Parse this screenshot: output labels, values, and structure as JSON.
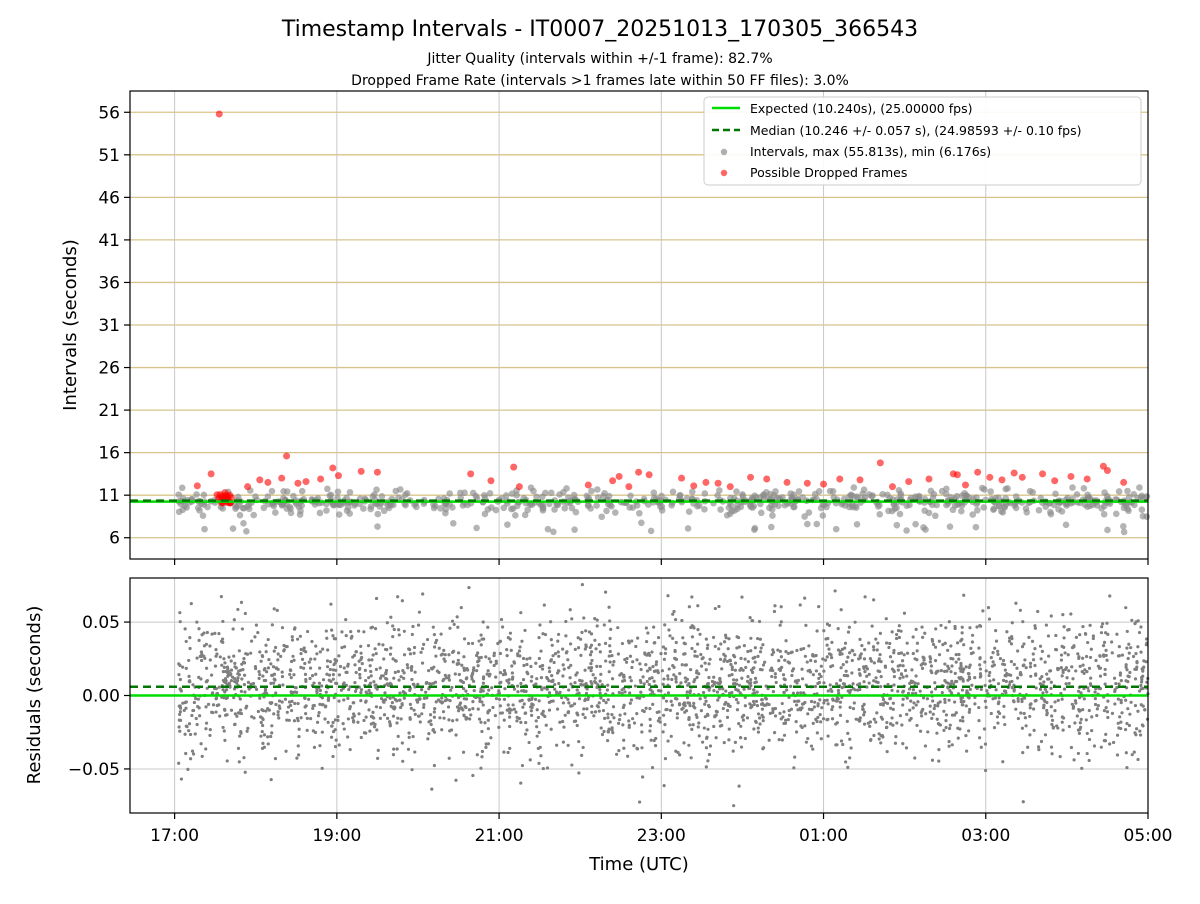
{
  "title": "Timestamp Intervals - IT0007_20251013_170305_366543",
  "subtitle_1": "Jitter Quality (intervals within +/-1 frame): 82.7%",
  "subtitle_2": "Dropped Frame Rate (intervals >1 frames late within 50 FF files): 3.0%",
  "colors": {
    "expected": "#00dd00",
    "median": "#007700",
    "interval": "#8c8c8c",
    "dropped": "#ff0000",
    "band": "#d8c48a",
    "grid": "#c8c8c8",
    "residual": "#7f7f7f"
  },
  "chart_data": [
    {
      "type": "scatter",
      "panel": "intervals",
      "xlabel": "",
      "ylabel": "Intervals (seconds)",
      "x_ticks": [
        "17:00",
        "19:00",
        "21:00",
        "23:00",
        "01:00",
        "03:00",
        "05:00"
      ],
      "x_tick_hours": [
        17,
        19,
        21,
        23,
        25,
        27,
        29
      ],
      "xlim_hours": [
        16.45,
        29.0
      ],
      "ylim": [
        3.5,
        58.5
      ],
      "y_ticks": [
        6,
        11,
        16,
        21,
        26,
        31,
        36,
        41,
        46,
        51,
        56
      ],
      "y_tick_labels": [
        "6",
        "11",
        "16",
        "21",
        "26",
        "31",
        "36",
        "41",
        "46",
        "51",
        "56"
      ],
      "grid": true,
      "legend_position": "top-right",
      "legend": [
        "Expected (10.240s), (25.00000 fps)",
        "Median (10.246 +/- 0.057 s), (24.98593 +/- 0.10 fps)",
        "Intervals, max (55.813s), min (6.176s)",
        "Possible Dropped Frames"
      ],
      "expected_value": 10.24,
      "median_value": 10.246,
      "interval_max": 55.813,
      "interval_min": 6.176,
      "series": [
        {
          "name": "Possible Dropped Frames",
          "x_hours": [
            17.28,
            17.45,
            17.55,
            17.62,
            17.68,
            17.9,
            18.05,
            18.15,
            18.32,
            18.38,
            18.52,
            18.62,
            18.8,
            18.95,
            19.02,
            19.3,
            19.5,
            20.65,
            20.9,
            21.18,
            21.25,
            22.1,
            22.4,
            22.48,
            22.6,
            22.72,
            22.85,
            23.25,
            23.4,
            23.55,
            23.7,
            23.85,
            24.1,
            24.3,
            24.55,
            24.8,
            25.0,
            25.2,
            25.45,
            25.7,
            25.85,
            26.05,
            26.3,
            26.6,
            26.65,
            26.75,
            26.9,
            27.05,
            27.2,
            27.35,
            27.45,
            27.7,
            27.85,
            28.05,
            28.25,
            28.45,
            28.5,
            28.7
          ],
          "values": [
            12.1,
            13.5,
            55.8,
            11.3,
            11.0,
            12.0,
            12.8,
            12.5,
            13.0,
            15.6,
            12.4,
            12.6,
            12.9,
            14.2,
            13.3,
            13.8,
            13.7,
            13.5,
            12.7,
            14.3,
            12.0,
            12.2,
            12.7,
            13.2,
            12.0,
            13.7,
            13.4,
            13.0,
            12.1,
            12.5,
            12.4,
            12.0,
            13.1,
            12.9,
            12.5,
            12.4,
            12.3,
            12.9,
            12.8,
            14.8,
            12.0,
            12.6,
            12.9,
            13.5,
            13.4,
            12.2,
            13.7,
            13.1,
            12.8,
            13.6,
            13.1,
            13.5,
            12.7,
            13.2,
            12.9,
            14.4,
            13.9,
            12.5
          ]
        }
      ]
    },
    {
      "type": "scatter",
      "panel": "residuals",
      "xlabel": "Time (UTC)",
      "ylabel": "Residuals (seconds)",
      "x_ticks": [
        "17:00",
        "19:00",
        "21:00",
        "23:00",
        "01:00",
        "03:00",
        "05:00"
      ],
      "x_tick_hours": [
        17,
        19,
        21,
        23,
        25,
        27,
        29
      ],
      "xlim_hours": [
        16.45,
        29.0
      ],
      "ylim": [
        -0.08,
        0.08
      ],
      "y_ticks": [
        -0.05,
        0.0,
        0.05
      ],
      "y_tick_labels": [
        "−0.05",
        "0.00",
        "0.05"
      ],
      "grid": true,
      "expected_residual": 0.0,
      "median_residual": 0.006,
      "residual_spread_sd": 0.023,
      "x_start_hours": 17.05,
      "x_end_hours": 29.0
    }
  ]
}
